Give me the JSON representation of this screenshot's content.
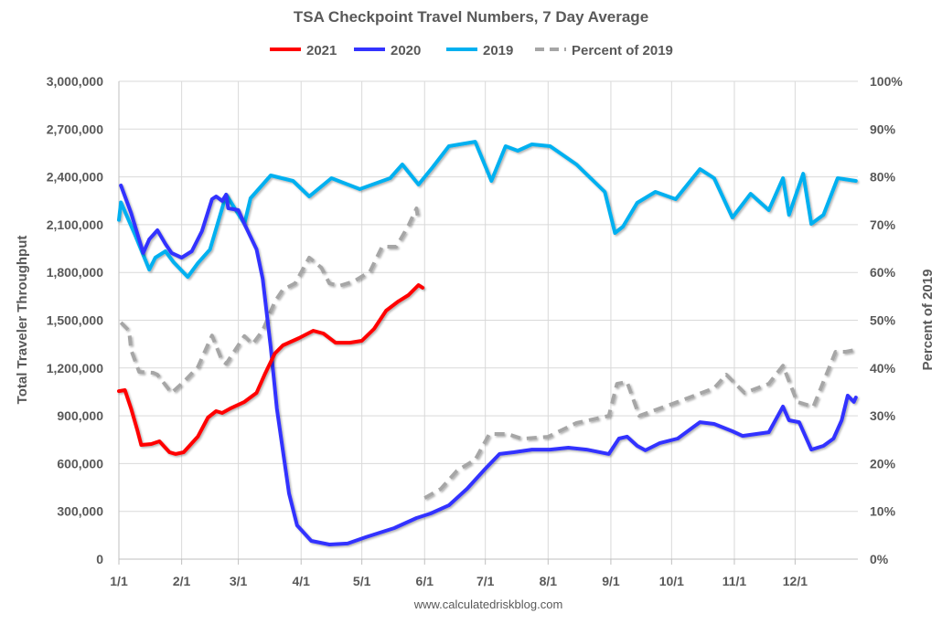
{
  "chart_data": {
    "type": "line",
    "title": "TSA Checkpoint Travel Numbers, 7 Day Average",
    "ylabel": "Total Traveler Throughput",
    "y2label": "Percent of 2019",
    "footer": "www.calculatedriskblog.com",
    "ylim": [
      0,
      3000000
    ],
    "y2lim": [
      0,
      100
    ],
    "yticks": [
      "0",
      "300,000",
      "600,000",
      "900,000",
      "1,200,000",
      "1,500,000",
      "1,800,000",
      "2,100,000",
      "2,400,000",
      "2,700,000",
      "3,000,000"
    ],
    "y2ticks": [
      "0%",
      "10%",
      "20%",
      "30%",
      "40%",
      "50%",
      "60%",
      "70%",
      "80%",
      "90%",
      "100%"
    ],
    "xticks": [
      "1/1",
      "2/1",
      "3/1",
      "4/1",
      "5/1",
      "6/1",
      "7/1",
      "8/1",
      "9/1",
      "10/1",
      "11/1",
      "12/1"
    ],
    "grid": true,
    "legend_position": "top",
    "series": [
      {
        "name": "2021",
        "color": "#FF0000",
        "axis": "left",
        "dashed": false,
        "points": [
          [
            "1/1",
            1055000
          ],
          [
            "1/4",
            1061000
          ],
          [
            "1/7",
            946000
          ],
          [
            "1/10",
            815000
          ],
          [
            "1/12",
            717000
          ],
          [
            "1/17",
            723000
          ],
          [
            "1/21",
            740000
          ],
          [
            "1/26",
            671000
          ],
          [
            "1/29",
            660000
          ],
          [
            "2/2",
            671000
          ],
          [
            "2/9",
            769000
          ],
          [
            "2/14",
            889000
          ],
          [
            "2/18",
            929000
          ],
          [
            "2/21",
            918000
          ],
          [
            "2/25",
            946000
          ],
          [
            "3/4",
            987000
          ],
          [
            "3/10",
            1044000
          ],
          [
            "3/14",
            1159000
          ],
          [
            "3/19",
            1291000
          ],
          [
            "3/23",
            1342000
          ],
          [
            "3/31",
            1388000
          ],
          [
            "4/7",
            1434000
          ],
          [
            "4/12",
            1417000
          ],
          [
            "4/18",
            1359000
          ],
          [
            "4/25",
            1359000
          ],
          [
            "5/1",
            1371000
          ],
          [
            "5/7",
            1445000
          ],
          [
            "5/13",
            1560000
          ],
          [
            "5/19",
            1618000
          ],
          [
            "5/24",
            1658000
          ],
          [
            "5/29",
            1721000
          ],
          [
            "5/31",
            1704000
          ]
        ]
      },
      {
        "name": "2020",
        "color": "#3333FF",
        "axis": "left",
        "dashed": false,
        "points": [
          [
            "1/2",
            2346000
          ],
          [
            "1/7",
            2174000
          ],
          [
            "1/13",
            1922000
          ],
          [
            "1/16",
            2008000
          ],
          [
            "1/20",
            2065000
          ],
          [
            "1/24",
            1979000
          ],
          [
            "1/27",
            1922000
          ],
          [
            "2/1",
            1893000
          ],
          [
            "2/6",
            1933000
          ],
          [
            "2/11",
            2059000
          ],
          [
            "2/16",
            2260000
          ],
          [
            "2/18",
            2277000
          ],
          [
            "2/21",
            2249000
          ],
          [
            "2/23",
            2289000
          ],
          [
            "2/24",
            2203000
          ],
          [
            "3/1",
            2191000
          ],
          [
            "3/4",
            2105000
          ],
          [
            "3/10",
            1945000
          ],
          [
            "3/13",
            1761000
          ],
          [
            "3/17",
            1331000
          ],
          [
            "3/20",
            946000
          ],
          [
            "3/26",
            413000
          ],
          [
            "3/30",
            212000
          ],
          [
            "4/6",
            115000
          ],
          [
            "4/15",
            92000
          ],
          [
            "4/24",
            98000
          ],
          [
            "5/3",
            138000
          ],
          [
            "5/17",
            195000
          ],
          [
            "5/28",
            258000
          ],
          [
            "6/4",
            287000
          ],
          [
            "6/13",
            338000
          ],
          [
            "6/22",
            442000
          ],
          [
            "7/1",
            568000
          ],
          [
            "7/8",
            660000
          ],
          [
            "7/15",
            671000
          ],
          [
            "7/24",
            688000
          ],
          [
            "8/2",
            688000
          ],
          [
            "8/11",
            700000
          ],
          [
            "8/20",
            688000
          ],
          [
            "8/31",
            660000
          ],
          [
            "9/5",
            757000
          ],
          [
            "9/9",
            769000
          ],
          [
            "9/14",
            711000
          ],
          [
            "9/18",
            683000
          ],
          [
            "9/25",
            728000
          ],
          [
            "10/4",
            757000
          ],
          [
            "10/15",
            860000
          ],
          [
            "10/22",
            849000
          ],
          [
            "10/31",
            803000
          ],
          [
            "11/5",
            774000
          ],
          [
            "11/18",
            797000
          ],
          [
            "11/25",
            958000
          ],
          [
            "11/28",
            872000
          ],
          [
            "12/3",
            860000
          ],
          [
            "12/9",
            688000
          ],
          [
            "12/15",
            711000
          ],
          [
            "12/20",
            757000
          ],
          [
            "12/24",
            872000
          ],
          [
            "12/27",
            1027000
          ],
          [
            "12/30",
            987000
          ],
          [
            "12/31",
            1015000
          ]
        ]
      },
      {
        "name": "2019",
        "color": "#00B0F0",
        "axis": "left",
        "dashed": false,
        "points": [
          [
            "1/1",
            2130000
          ],
          [
            "1/2",
            2240000
          ],
          [
            "1/9",
            2036000
          ],
          [
            "1/16",
            1818000
          ],
          [
            "1/19",
            1893000
          ],
          [
            "1/24",
            1933000
          ],
          [
            "1/28",
            1864000
          ],
          [
            "2/4",
            1772000
          ],
          [
            "2/9",
            1858000
          ],
          [
            "2/15",
            1944000
          ],
          [
            "2/23",
            2289000
          ],
          [
            "3/4",
            2105000
          ],
          [
            "3/7",
            2266000
          ],
          [
            "3/17",
            2409000
          ],
          [
            "3/28",
            2375000
          ],
          [
            "4/5",
            2277000
          ],
          [
            "4/16",
            2392000
          ],
          [
            "4/30",
            2323000
          ],
          [
            "5/15",
            2392000
          ],
          [
            "5/21",
            2478000
          ],
          [
            "5/29",
            2352000
          ],
          [
            "6/5",
            2461000
          ],
          [
            "6/13",
            2593000
          ],
          [
            "6/26",
            2621000
          ],
          [
            "7/4",
            2375000
          ],
          [
            "7/11",
            2593000
          ],
          [
            "7/17",
            2564000
          ],
          [
            "7/24",
            2604000
          ],
          [
            "8/2",
            2593000
          ],
          [
            "8/15",
            2478000
          ],
          [
            "8/29",
            2306000
          ],
          [
            "9/3",
            2048000
          ],
          [
            "9/7",
            2088000
          ],
          [
            "9/14",
            2237000
          ],
          [
            "9/23",
            2306000
          ],
          [
            "10/3",
            2260000
          ],
          [
            "10/15",
            2449000
          ],
          [
            "10/22",
            2392000
          ],
          [
            "10/31",
            2145000
          ],
          [
            "11/9",
            2294000
          ],
          [
            "11/18",
            2191000
          ],
          [
            "11/25",
            2392000
          ],
          [
            "11/28",
            2162000
          ],
          [
            "12/5",
            2420000
          ],
          [
            "12/9",
            2105000
          ],
          [
            "12/15",
            2162000
          ],
          [
            "12/22",
            2392000
          ],
          [
            "12/31",
            2375000
          ]
        ]
      },
      {
        "name": "Percent of 2019",
        "color": "#A6A6A6",
        "axis": "right",
        "dashed": true,
        "points": [
          [
            "1/2",
            49.5
          ],
          [
            "1/6",
            47.8
          ],
          [
            "1/7",
            43.8
          ],
          [
            "1/11",
            39.2
          ],
          [
            "1/18",
            39
          ],
          [
            "1/20",
            38.6
          ],
          [
            "1/27",
            34.8
          ],
          [
            "2/2",
            37.1
          ],
          [
            "2/9",
            40.2
          ],
          [
            "2/16",
            46.8
          ],
          [
            "2/21",
            41.5
          ],
          [
            "2/23",
            40.9
          ],
          [
            "3/4",
            46.7
          ],
          [
            "3/8",
            45
          ],
          [
            "3/13",
            47.8
          ],
          [
            "3/19",
            53.9
          ],
          [
            "3/23",
            56.4
          ],
          [
            "3/29",
            57.7
          ],
          [
            "4/5",
            63.1
          ],
          [
            "4/11",
            61
          ],
          [
            "4/15",
            57.7
          ],
          [
            "4/20",
            57.2
          ],
          [
            "4/27",
            58.1
          ],
          [
            "5/5",
            60.2
          ],
          [
            "5/11",
            65.4
          ],
          [
            "5/18",
            65.4
          ],
          [
            "5/24",
            69.8
          ],
          [
            "5/28",
            73.4
          ],
          [
            "5/29",
            70.6
          ],
          null,
          [
            "6/1",
            12.8
          ],
          [
            "6/9",
            14.7
          ],
          [
            "6/17",
            18.5
          ],
          [
            "6/26",
            20.8
          ],
          [
            "7/3",
            26.2
          ],
          [
            "7/12",
            26.2
          ],
          [
            "7/19",
            25.2
          ],
          [
            "8/1",
            25.6
          ],
          [
            "8/15",
            28.5
          ],
          [
            "8/31",
            30
          ],
          [
            "9/4",
            36.7
          ],
          [
            "9/9",
            37.1
          ],
          [
            "9/15",
            30
          ],
          [
            "10/4",
            32.9
          ],
          [
            "10/22",
            35.8
          ],
          [
            "10/28",
            38.6
          ],
          [
            "11/6",
            34.8
          ],
          [
            "11/18",
            36.7
          ],
          [
            "11/25",
            40.5
          ],
          [
            "12/2",
            32.9
          ],
          [
            "12/10",
            31.9
          ],
          [
            "12/21",
            43.4
          ],
          [
            "12/26",
            43.4
          ],
          [
            "12/31",
            43.8
          ]
        ]
      }
    ]
  }
}
